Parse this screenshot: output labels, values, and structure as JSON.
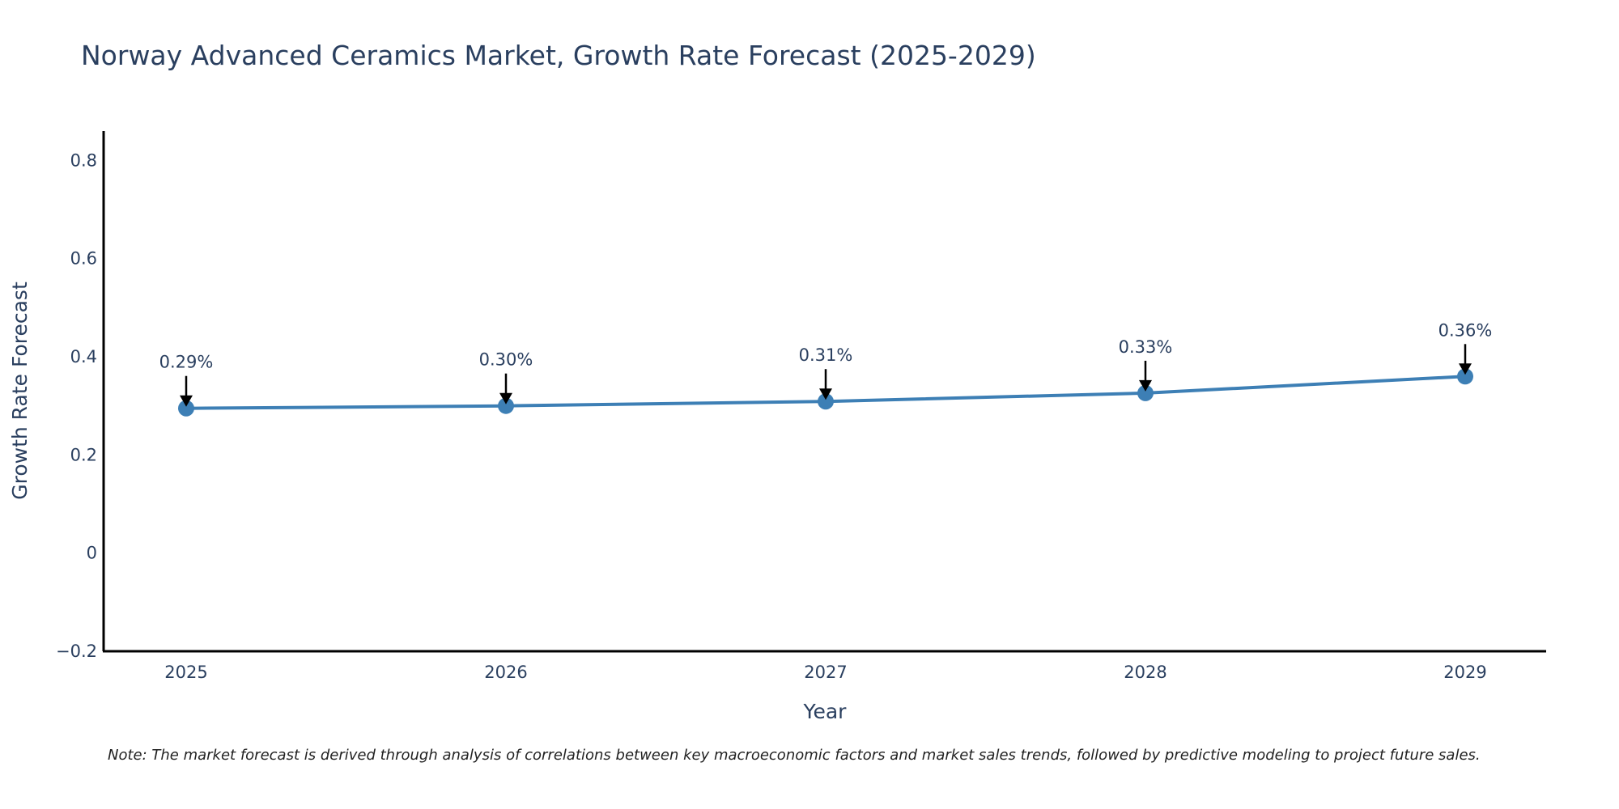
{
  "chart_data": {
    "type": "line",
    "title": "Norway Advanced Ceramics Market, Growth Rate Forecast (2025-2029)",
    "xlabel": "Year",
    "ylabel": "Growth Rate Forecast",
    "categories": [
      "2025",
      "2026",
      "2027",
      "2028",
      "2029"
    ],
    "series": [
      {
        "name": "Growth Rate Forecast",
        "values": [
          0.295,
          0.3,
          0.309,
          0.326,
          0.36
        ],
        "labels": [
          "0.29%",
          "0.30%",
          "0.31%",
          "0.33%",
          "0.36%"
        ]
      }
    ],
    "ylim": [
      -0.2,
      0.86
    ],
    "yticks": [
      -0.2,
      0,
      0.2,
      0.4,
      0.6,
      0.8
    ],
    "ytick_labels": [
      "−0.2",
      "0",
      "0.2",
      "0.4",
      "0.6",
      "0.8"
    ],
    "grid": false,
    "legend": "none",
    "line_color": "#3d7fb5",
    "note": "Note: The market forecast is derived through analysis of correlations between key macroeconomic factors and market sales trends, followed by predictive modeling to project future sales."
  }
}
